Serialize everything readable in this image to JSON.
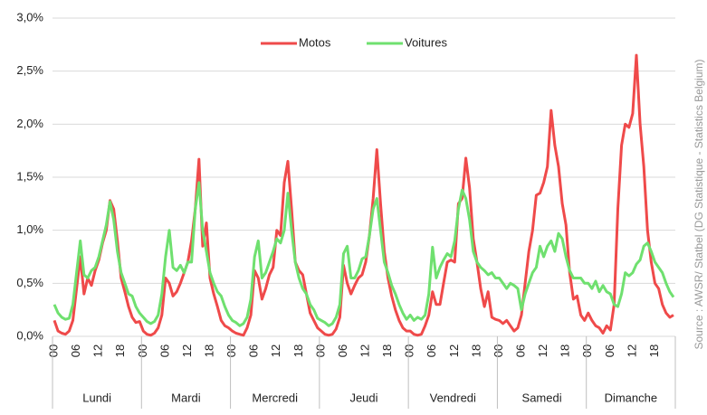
{
  "chart_data": {
    "type": "line",
    "source": "Source : AWSR/ Statbel (DG Statistique - Statistics Belgium)",
    "days": [
      "Lundi",
      "Mardi",
      "Mercredi",
      "Jeudi",
      "Vendredi",
      "Samedi",
      "Dimanche"
    ],
    "categories": [
      "00",
      null,
      null,
      null,
      null,
      null,
      "06",
      null,
      null,
      null,
      null,
      null,
      "12",
      null,
      null,
      null,
      null,
      null,
      "18",
      null,
      null,
      null,
      null,
      null,
      "00",
      null,
      null,
      null,
      null,
      null,
      "06",
      null,
      null,
      null,
      null,
      null,
      "12",
      null,
      null,
      null,
      null,
      null,
      "18",
      null,
      null,
      null,
      null,
      null,
      "00",
      null,
      null,
      null,
      null,
      null,
      "06",
      null,
      null,
      null,
      null,
      null,
      "12",
      null,
      null,
      null,
      null,
      null,
      "18",
      null,
      null,
      null,
      null,
      null,
      "00",
      null,
      null,
      null,
      null,
      null,
      "06",
      null,
      null,
      null,
      null,
      null,
      "12",
      null,
      null,
      null,
      null,
      null,
      "18",
      null,
      null,
      null,
      null,
      null,
      "00",
      null,
      null,
      null,
      null,
      null,
      "06",
      null,
      null,
      null,
      null,
      null,
      "12",
      null,
      null,
      null,
      null,
      null,
      "18",
      null,
      null,
      null,
      null,
      null,
      "00",
      null,
      null,
      null,
      null,
      null,
      "06",
      null,
      null,
      null,
      null,
      null,
      "12",
      null,
      null,
      null,
      null,
      null,
      "18",
      null,
      null,
      null,
      null,
      null,
      "00",
      null,
      null,
      null,
      null,
      null,
      "06",
      null,
      null,
      null,
      null,
      null,
      "12",
      null,
      null,
      null,
      null,
      null,
      "18",
      null,
      null,
      null,
      null,
      null
    ],
    "series": [
      {
        "name": "Motos",
        "color": "#ef4a4a",
        "values": [
          0.15,
          0.05,
          0.03,
          0.02,
          0.05,
          0.15,
          0.45,
          0.75,
          0.4,
          0.55,
          0.48,
          0.62,
          0.72,
          0.88,
          1.0,
          1.28,
          1.2,
          0.9,
          0.55,
          0.42,
          0.28,
          0.18,
          0.13,
          0.14,
          0.05,
          0.02,
          0.01,
          0.03,
          0.08,
          0.2,
          0.55,
          0.5,
          0.38,
          0.42,
          0.5,
          0.6,
          0.7,
          0.9,
          1.2,
          1.67,
          0.85,
          1.07,
          0.55,
          0.4,
          0.28,
          0.15,
          0.1,
          0.08,
          0.05,
          0.03,
          0.02,
          0.01,
          0.08,
          0.2,
          0.62,
          0.55,
          0.35,
          0.45,
          0.58,
          0.65,
          1.0,
          0.95,
          1.45,
          1.65,
          1.2,
          0.7,
          0.62,
          0.58,
          0.4,
          0.22,
          0.15,
          0.08,
          0.05,
          0.02,
          0.01,
          0.02,
          0.07,
          0.18,
          0.67,
          0.5,
          0.4,
          0.48,
          0.55,
          0.58,
          0.7,
          0.95,
          1.3,
          1.76,
          1.25,
          0.8,
          0.55,
          0.38,
          0.25,
          0.15,
          0.08,
          0.05,
          0.05,
          0.02,
          0.01,
          0.02,
          0.1,
          0.2,
          0.42,
          0.3,
          0.3,
          0.5,
          0.7,
          0.72,
          0.7,
          1.25,
          1.3,
          1.68,
          1.4,
          0.92,
          0.7,
          0.45,
          0.28,
          0.42,
          0.18,
          0.16,
          0.15,
          0.12,
          0.15,
          0.1,
          0.05,
          0.08,
          0.2,
          0.5,
          0.8,
          1.0,
          1.33,
          1.35,
          1.45,
          1.6,
          2.13,
          1.8,
          1.6,
          1.25,
          1.05,
          0.6,
          0.35,
          0.38,
          0.2,
          0.15,
          0.22,
          0.15,
          0.1,
          0.08,
          0.03,
          0.1,
          0.06,
          0.3,
          1.2,
          1.8,
          2.0,
          1.97,
          2.1,
          2.65,
          2.0,
          1.6,
          1.0,
          0.7,
          0.5,
          0.45,
          0.3,
          0.22,
          0.18,
          0.2
        ]
      },
      {
        "name": "Voitures",
        "color": "#6fe06f",
        "values": [
          0.3,
          0.22,
          0.18,
          0.16,
          0.17,
          0.3,
          0.6,
          0.9,
          0.58,
          0.55,
          0.62,
          0.65,
          0.75,
          0.9,
          1.05,
          1.27,
          1.1,
          0.8,
          0.6,
          0.5,
          0.4,
          0.38,
          0.28,
          0.22,
          0.18,
          0.14,
          0.12,
          0.14,
          0.2,
          0.4,
          0.75,
          1.0,
          0.65,
          0.62,
          0.67,
          0.6,
          0.7,
          0.7,
          1.2,
          1.45,
          1.0,
          0.8,
          0.6,
          0.5,
          0.42,
          0.38,
          0.28,
          0.2,
          0.15,
          0.13,
          0.1,
          0.12,
          0.18,
          0.35,
          0.75,
          0.9,
          0.55,
          0.6,
          0.7,
          0.8,
          0.92,
          0.88,
          1.0,
          1.35,
          1.0,
          0.7,
          0.55,
          0.45,
          0.4,
          0.3,
          0.25,
          0.17,
          0.15,
          0.13,
          0.1,
          0.12,
          0.18,
          0.3,
          0.78,
          0.85,
          0.55,
          0.55,
          0.62,
          0.73,
          0.75,
          0.95,
          1.2,
          1.3,
          1.0,
          0.7,
          0.6,
          0.48,
          0.4,
          0.3,
          0.22,
          0.16,
          0.2,
          0.15,
          0.18,
          0.16,
          0.2,
          0.4,
          0.84,
          0.55,
          0.65,
          0.72,
          0.78,
          0.75,
          0.9,
          1.2,
          1.38,
          1.3,
          1.1,
          0.8,
          0.7,
          0.65,
          0.62,
          0.58,
          0.6,
          0.55,
          0.55,
          0.5,
          0.45,
          0.5,
          0.48,
          0.45,
          0.25,
          0.4,
          0.5,
          0.6,
          0.65,
          0.85,
          0.75,
          0.85,
          0.9,
          0.8,
          0.97,
          0.92,
          0.75,
          0.62,
          0.55,
          0.55,
          0.55,
          0.5,
          0.5,
          0.45,
          0.52,
          0.42,
          0.48,
          0.42,
          0.4,
          0.3,
          0.28,
          0.4,
          0.6,
          0.57,
          0.6,
          0.68,
          0.72,
          0.85,
          0.88,
          0.8,
          0.7,
          0.65,
          0.6,
          0.5,
          0.42,
          0.37
        ]
      }
    ],
    "ylim": [
      0,
      3
    ],
    "yticks": [
      {
        "value": 0,
        "label": "0,0%"
      },
      {
        "value": 0.5,
        "label": "0,5%"
      },
      {
        "value": 1,
        "label": "1,0%"
      },
      {
        "value": 1.5,
        "label": "1,5%"
      },
      {
        "value": 2,
        "label": "2,0%"
      },
      {
        "value": 2.5,
        "label": "2,5%"
      },
      {
        "value": 3,
        "label": "3,0%"
      }
    ],
    "grid": true,
    "legend": "top"
  }
}
